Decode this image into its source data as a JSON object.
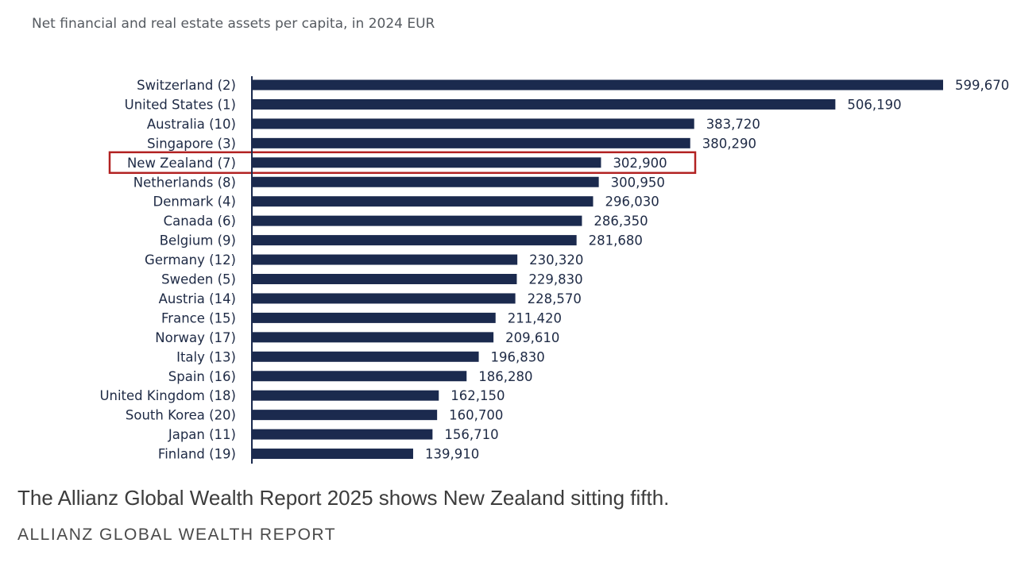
{
  "subtitle": "Net financial and real estate assets per capita, in 2024 EUR",
  "caption": "The Allianz Global Wealth Report 2025 shows New Zealand sitting fifth.",
  "credit": "ALLIANZ GLOBAL WEALTH REPORT",
  "colors": {
    "bar": "#1b2a4e",
    "highlight_box": "#b22222",
    "axis": "#1b2a4e"
  },
  "chart_data": {
    "type": "bar",
    "orientation": "horizontal",
    "categories": [
      "Switzerland (2)",
      "United States (1)",
      "Australia (10)",
      "Singapore (3)",
      "New Zealand (7)",
      "Netherlands (8)",
      "Denmark (4)",
      "Canada (6)",
      "Belgium (9)",
      "Germany (12)",
      "Sweden (5)",
      "Austria (14)",
      "France (15)",
      "Norway (17)",
      "Italy (13)",
      "Spain (16)",
      "United Kingdom (18)",
      "South Korea (20)",
      "Japan (11)",
      "Finland (19)"
    ],
    "values": [
      599670,
      506190,
      383720,
      380290,
      302900,
      300950,
      296030,
      286350,
      281680,
      230320,
      229830,
      228570,
      211420,
      209610,
      196830,
      186280,
      162150,
      160700,
      156710,
      139910
    ],
    "value_labels": [
      "599,670",
      "506,190",
      "383,720",
      "380,290",
      "302,900",
      "300,950",
      "296,030",
      "286,350",
      "281,680",
      "230,320",
      "229,830",
      "228,570",
      "211,420",
      "209,610",
      "196,830",
      "186,280",
      "162,150",
      "160,700",
      "156,710",
      "139,910"
    ],
    "highlighted_category": "New Zealand (7)",
    "xlim": [
      0,
      599670
    ],
    "grid": false,
    "legend": false
  }
}
